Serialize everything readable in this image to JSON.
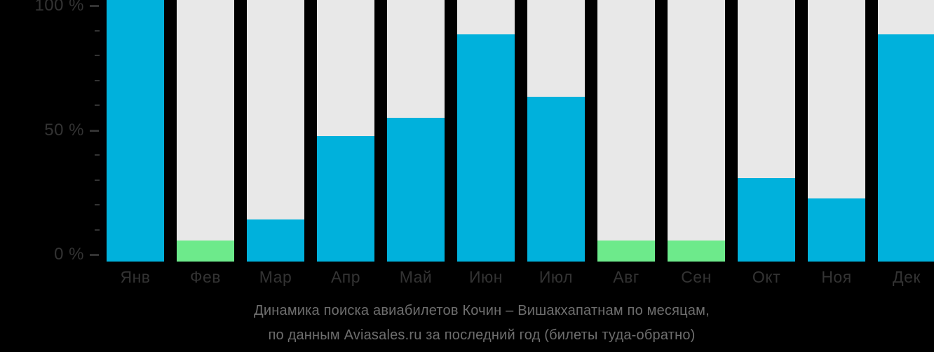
{
  "background_color": "#000000",
  "chart_data": {
    "type": "bar",
    "title": "Динамика поиска авиабилетов Кочин – Вишакхапатнам по месяцам,",
    "subtitle": "по данным Aviasales.ru за последний год (билеты туда-обратно)",
    "categories": [
      "Янв",
      "Фев",
      "Мар",
      "Апр",
      "Май",
      "Июн",
      "Июл",
      "Авг",
      "Сен",
      "Окт",
      "Ноя",
      "Дек"
    ],
    "values": [
      100,
      8,
      16,
      48,
      55,
      87,
      63,
      8,
      8,
      32,
      24,
      87
    ],
    "bar_colors": [
      "blue",
      "green",
      "blue",
      "blue",
      "blue",
      "blue",
      "blue",
      "green",
      "green",
      "blue",
      "blue",
      "blue"
    ],
    "colors": {
      "blue": "#00b1dc",
      "green": "#6dea8b",
      "track": "#e8e8e8",
      "axis_text": "#333333",
      "title_text": "#6e6e6e"
    },
    "ylabel": "",
    "xlabel": "",
    "ylim": [
      0,
      100
    ],
    "grid": false,
    "legend": false,
    "y_axis": {
      "major_ticks": [
        {
          "pct": 0,
          "label": "0 %"
        },
        {
          "pct": 50,
          "label": "50 %"
        },
        {
          "pct": 100,
          "label": "100 %"
        }
      ],
      "minor_ticks": [
        10,
        20,
        30,
        40,
        60,
        70,
        80,
        90
      ]
    }
  }
}
